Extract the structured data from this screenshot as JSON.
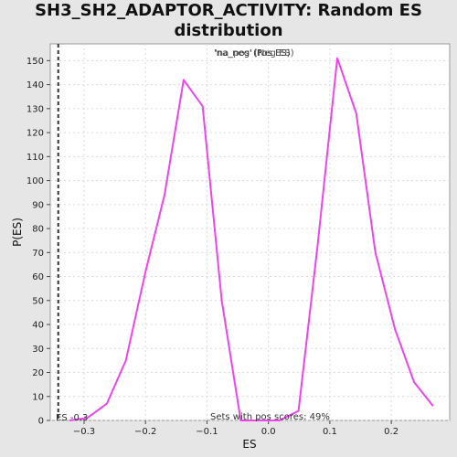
{
  "chart_data": {
    "type": "line",
    "title_line1": "SH3_SH2_ADAPTOR_ACTIVITY: Random ES",
    "title_line2": "distribution",
    "xlabel": "ES",
    "ylabel": "P(ES)",
    "xlim": [
      -0.355,
      0.295
    ],
    "ylim": [
      0,
      157
    ],
    "xticks": [
      -0.3,
      -0.2,
      -0.1,
      0.0,
      0.1,
      0.2
    ],
    "xtick_labels": [
      "−0.3",
      "−0.2",
      "−0.1",
      "0.0",
      "0.1",
      "0.2"
    ],
    "yticks": [
      0,
      10,
      20,
      30,
      40,
      50,
      60,
      70,
      80,
      90,
      100,
      110,
      120,
      130,
      140,
      150
    ],
    "grid": true,
    "legend": {
      "label_na_neg": "'na_neg'",
      "label_pos_es": "(Pos ES)",
      "label_na_pos": "'na_pos'",
      "label_neg_es": "(Neg ES)",
      "position": "top-center"
    },
    "series": [
      {
        "color": "#ee44ee",
        "x": [
          -0.324,
          -0.295,
          -0.263,
          -0.232,
          -0.2,
          -0.169,
          -0.138,
          -0.107,
          -0.076,
          -0.045,
          -0.014,
          0.018,
          0.049,
          0.08,
          0.112,
          0.143,
          0.174,
          0.206,
          0.237,
          0.268
        ],
        "y": [
          0,
          1,
          7,
          25,
          62,
          94,
          142,
          131,
          50,
          0,
          0,
          0,
          4,
          73,
          151,
          128,
          70,
          38,
          16,
          6
        ]
      }
    ],
    "es_marker": {
      "x": -0.342,
      "label": "ES -0.3"
    },
    "footnote": "Sets with pos scores: 49%"
  }
}
